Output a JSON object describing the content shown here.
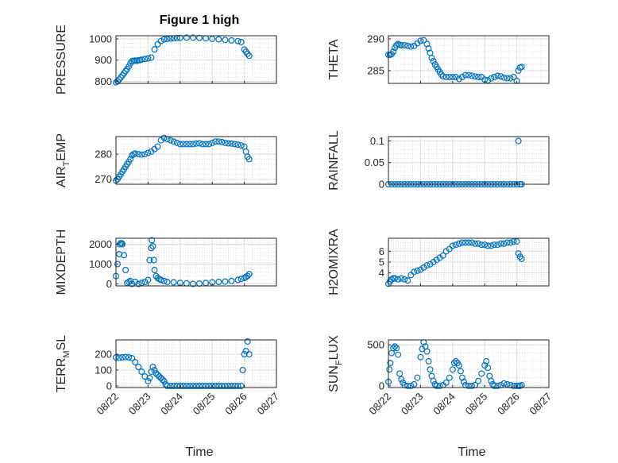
{
  "figure": {
    "title": "Figure 1 high",
    "xlabel": "Time",
    "marker_color": "#0072BD",
    "x_ticks": [
      "08/22",
      "08/23",
      "08/24",
      "08/25",
      "08/26",
      "08/27"
    ]
  },
  "chart_data": [
    {
      "type": "scatter",
      "ylabel": "PRESSURE",
      "xlim": [
        "08/22",
        "08/27"
      ],
      "ylim": [
        790,
        1015
      ],
      "yticks": [
        800,
        900,
        1000
      ],
      "grid": true,
      "x": [
        0.0,
        0.05,
        0.1,
        0.15,
        0.2,
        0.25,
        0.3,
        0.35,
        0.4,
        0.45,
        0.5,
        0.55,
        0.6,
        0.65,
        0.7,
        0.75,
        0.8,
        0.9,
        1.0,
        1.1,
        1.2,
        1.3,
        1.4,
        1.5,
        1.6,
        1.7,
        1.8,
        1.9,
        2.0,
        2.2,
        2.4,
        2.6,
        2.8,
        3.0,
        3.2,
        3.4,
        3.6,
        3.8,
        3.9,
        4.0,
        4.05,
        4.1,
        4.15
      ],
      "y": [
        795,
        800,
        808,
        818,
        828,
        838,
        848,
        858,
        870,
        885,
        895,
        897,
        898,
        897,
        899,
        900,
        902,
        905,
        908,
        912,
        950,
        975,
        990,
        998,
        1000,
        1002,
        1003,
        1004,
        1005,
        1006,
        1006,
        1005,
        1003,
        1000,
        998,
        995,
        993,
        990,
        985,
        950,
        940,
        930,
        920
      ]
    },
    {
      "type": "scatter",
      "ylabel": "THETA",
      "xlim": [
        "08/22",
        "08/27"
      ],
      "ylim": [
        283,
        290.5
      ],
      "yticks": [
        285,
        290
      ],
      "grid": true,
      "x": [
        0.0,
        0.05,
        0.1,
        0.15,
        0.2,
        0.25,
        0.3,
        0.35,
        0.4,
        0.5,
        0.6,
        0.7,
        0.8,
        0.9,
        1.0,
        1.1,
        1.2,
        1.25,
        1.3,
        1.35,
        1.4,
        1.45,
        1.5,
        1.55,
        1.6,
        1.65,
        1.7,
        1.8,
        1.9,
        2.0,
        2.1,
        2.2,
        2.3,
        2.4,
        2.5,
        2.6,
        2.7,
        2.8,
        2.9,
        3.0,
        3.1,
        3.2,
        3.3,
        3.4,
        3.5,
        3.6,
        3.7,
        3.8,
        3.9,
        4.0,
        4.05,
        4.1,
        4.15
      ],
      "y": [
        287.5,
        287.5,
        287.6,
        288.0,
        288.6,
        289.0,
        289.2,
        289.1,
        289.0,
        289.0,
        288.9,
        288.8,
        288.9,
        289.3,
        289.7,
        289.8,
        289.2,
        288.5,
        287.8,
        287.0,
        286.5,
        286.0,
        285.6,
        285.2,
        284.8,
        284.4,
        284.1,
        284.0,
        284.0,
        284.0,
        284.0,
        283.7,
        284.0,
        284.3,
        284.3,
        284.2,
        284.1,
        284.0,
        284.0,
        283.6,
        283.5,
        283.8,
        284.0,
        284.2,
        284.1,
        283.9,
        283.8,
        283.8,
        284.0,
        283.4,
        285.0,
        285.5,
        285.6
      ]
    },
    {
      "type": "scatter",
      "ylabel": "AIR_TEMP",
      "xlim": [
        "08/22",
        "08/27"
      ],
      "ylim": [
        268,
        287
      ],
      "yticks": [
        270,
        280
      ],
      "grid": true,
      "x": [
        0.0,
        0.05,
        0.1,
        0.15,
        0.2,
        0.25,
        0.3,
        0.35,
        0.4,
        0.45,
        0.5,
        0.55,
        0.6,
        0.7,
        0.8,
        0.9,
        1.0,
        1.1,
        1.2,
        1.3,
        1.4,
        1.5,
        1.6,
        1.7,
        1.8,
        1.9,
        2.0,
        2.1,
        2.2,
        2.3,
        2.4,
        2.5,
        2.6,
        2.7,
        2.8,
        2.9,
        3.0,
        3.1,
        3.2,
        3.3,
        3.4,
        3.5,
        3.6,
        3.7,
        3.8,
        3.9,
        4.0,
        4.05,
        4.1,
        4.15
      ],
      "y": [
        269.5,
        270.0,
        271.0,
        272.0,
        273.0,
        274.0,
        275.0,
        276.0,
        277.0,
        278.0,
        279.5,
        280.0,
        280.3,
        280.0,
        279.8,
        280.0,
        280.5,
        281.0,
        282.0,
        283.0,
        285.5,
        286.5,
        286.0,
        285.5,
        285.0,
        284.5,
        284.0,
        284.0,
        284.0,
        284.0,
        284.0,
        284.2,
        284.3,
        284.0,
        284.0,
        284.0,
        284.5,
        285.0,
        285.0,
        284.8,
        284.5,
        284.3,
        284.2,
        284.0,
        283.8,
        283.5,
        283.0,
        281.0,
        279.0,
        278.0
      ]
    },
    {
      "type": "scatter",
      "ylabel": "RAINFALL",
      "xlim": [
        "08/22",
        "08/27"
      ],
      "ylim": [
        0,
        0.11
      ],
      "yticks": [
        0,
        0.05,
        0.1
      ],
      "grid": true,
      "x": [
        0.0,
        0.1,
        0.2,
        0.3,
        0.4,
        0.5,
        0.6,
        0.7,
        0.8,
        0.9,
        1.0,
        1.1,
        1.2,
        1.3,
        1.4,
        1.5,
        1.6,
        1.7,
        1.8,
        1.9,
        2.0,
        2.1,
        2.2,
        2.3,
        2.4,
        2.5,
        2.6,
        2.7,
        2.8,
        2.9,
        3.0,
        3.1,
        3.2,
        3.3,
        3.4,
        3.5,
        3.6,
        3.7,
        3.8,
        3.9,
        4.0,
        4.05,
        4.1,
        4.15
      ],
      "y": [
        0,
        0,
        0,
        0,
        0,
        0,
        0,
        0,
        0,
        0,
        0,
        0,
        0,
        0,
        0,
        0,
        0,
        0,
        0,
        0,
        0,
        0,
        0,
        0,
        0,
        0,
        0,
        0,
        0,
        0,
        0,
        0,
        0,
        0,
        0,
        0,
        0,
        0,
        0,
        0,
        0,
        0.1,
        0,
        0
      ]
    },
    {
      "type": "scatter",
      "ylabel": "MIXDEPTH",
      "xlim": [
        "08/22",
        "08/27"
      ],
      "ylim": [
        -100,
        2300
      ],
      "yticks": [
        0,
        1000,
        2000
      ],
      "grid": true,
      "x": [
        0.0,
        0.05,
        0.1,
        0.12,
        0.15,
        0.18,
        0.2,
        0.25,
        0.3,
        0.35,
        0.4,
        0.45,
        0.5,
        0.6,
        0.7,
        0.8,
        0.9,
        1.0,
        1.05,
        1.1,
        1.12,
        1.15,
        1.18,
        1.2,
        1.25,
        1.3,
        1.35,
        1.4,
        1.5,
        1.6,
        1.8,
        2.0,
        2.2,
        2.4,
        2.6,
        2.8,
        3.0,
        3.2,
        3.4,
        3.6,
        3.8,
        3.9,
        4.0,
        4.05,
        4.1,
        4.15
      ],
      "y": [
        400,
        1000,
        1500,
        2000,
        2050,
        2050,
        2000,
        1450,
        700,
        50,
        100,
        150,
        0,
        100,
        0,
        50,
        100,
        200,
        1200,
        1800,
        2200,
        1900,
        1200,
        700,
        400,
        300,
        250,
        200,
        150,
        100,
        80,
        50,
        30,
        0,
        20,
        50,
        80,
        100,
        120,
        150,
        200,
        250,
        300,
        350,
        400,
        500
      ]
    },
    {
      "type": "scatter",
      "ylabel": "H2OMIXRA",
      "xlim": [
        "08/22",
        "08/27"
      ],
      "ylim": [
        2.8,
        7.2
      ],
      "yticks": [
        4,
        5,
        6
      ],
      "grid": true,
      "x": [
        0.0,
        0.05,
        0.1,
        0.15,
        0.2,
        0.3,
        0.4,
        0.5,
        0.6,
        0.7,
        0.8,
        0.9,
        1.0,
        1.1,
        1.2,
        1.3,
        1.4,
        1.5,
        1.6,
        1.7,
        1.8,
        1.9,
        2.0,
        2.1,
        2.2,
        2.3,
        2.4,
        2.5,
        2.6,
        2.7,
        2.8,
        2.9,
        3.0,
        3.1,
        3.2,
        3.3,
        3.4,
        3.5,
        3.6,
        3.7,
        3.8,
        3.9,
        4.0,
        4.05,
        4.1,
        4.15
      ],
      "y": [
        3.0,
        3.2,
        3.4,
        3.5,
        3.5,
        3.4,
        3.5,
        3.4,
        3.3,
        3.8,
        4.1,
        4.2,
        4.3,
        4.5,
        4.7,
        4.8,
        5.0,
        5.2,
        5.4,
        5.6,
        6.0,
        6.2,
        6.5,
        6.6,
        6.7,
        6.8,
        6.8,
        6.8,
        6.8,
        6.7,
        6.7,
        6.6,
        6.6,
        6.5,
        6.5,
        6.6,
        6.6,
        6.7,
        6.7,
        6.8,
        6.8,
        6.9,
        6.9,
        5.8,
        5.5,
        5.3
      ]
    },
    {
      "type": "scatter",
      "ylabel": "TERR_MSL",
      "xlim": [
        "08/22",
        "08/27"
      ],
      "ylim": [
        -10,
        290
      ],
      "yticks": [
        0,
        100,
        200
      ],
      "grid": true,
      "x": [
        0.0,
        0.1,
        0.2,
        0.3,
        0.4,
        0.5,
        0.6,
        0.7,
        0.8,
        0.9,
        1.0,
        1.05,
        1.1,
        1.15,
        1.2,
        1.25,
        1.3,
        1.35,
        1.4,
        1.45,
        1.5,
        1.55,
        1.6,
        1.7,
        1.8,
        1.9,
        2.0,
        2.1,
        2.2,
        2.3,
        2.4,
        2.5,
        2.6,
        2.7,
        2.8,
        2.9,
        3.0,
        3.1,
        3.2,
        3.3,
        3.4,
        3.5,
        3.6,
        3.7,
        3.8,
        3.9,
        3.95,
        4.0,
        4.05,
        4.1,
        4.15
      ],
      "y": [
        180,
        178,
        180,
        182,
        180,
        175,
        150,
        120,
        90,
        60,
        30,
        50,
        90,
        120,
        100,
        80,
        70,
        60,
        50,
        40,
        30,
        10,
        0,
        0,
        0,
        0,
        0,
        0,
        0,
        0,
        0,
        0,
        0,
        0,
        0,
        0,
        0,
        0,
        0,
        0,
        0,
        0,
        0,
        0,
        0,
        0,
        100,
        200,
        220,
        280,
        200
      ]
    },
    {
      "type": "scatter",
      "ylabel": "SUN_FLUX",
      "xlim": [
        "08/22",
        "08/27"
      ],
      "ylim": [
        -20,
        560
      ],
      "yticks": [
        0,
        500
      ],
      "grid": true,
      "x": [
        0.0,
        0.03,
        0.06,
        0.1,
        0.15,
        0.2,
        0.25,
        0.3,
        0.35,
        0.4,
        0.45,
        0.5,
        0.6,
        0.7,
        0.8,
        0.9,
        1.0,
        1.05,
        1.1,
        1.15,
        1.2,
        1.25,
        1.3,
        1.35,
        1.4,
        1.45,
        1.5,
        1.6,
        1.7,
        1.8,
        1.9,
        2.0,
        2.05,
        2.1,
        2.15,
        2.2,
        2.25,
        2.3,
        2.35,
        2.4,
        2.5,
        2.6,
        2.7,
        2.8,
        2.9,
        3.0,
        3.05,
        3.1,
        3.15,
        3.2,
        3.25,
        3.3,
        3.4,
        3.5,
        3.6,
        3.7,
        3.8,
        3.9,
        4.0,
        4.05,
        4.1,
        4.15
      ],
      "y": [
        50,
        200,
        280,
        400,
        460,
        480,
        460,
        380,
        150,
        80,
        40,
        10,
        0,
        0,
        20,
        100,
        350,
        450,
        530,
        480,
        420,
        300,
        200,
        120,
        60,
        20,
        0,
        0,
        10,
        40,
        100,
        200,
        280,
        300,
        280,
        250,
        180,
        100,
        50,
        10,
        0,
        0,
        10,
        60,
        150,
        250,
        300,
        220,
        120,
        60,
        20,
        0,
        0,
        10,
        30,
        20,
        10,
        0,
        0,
        0,
        0,
        10
      ]
    }
  ]
}
